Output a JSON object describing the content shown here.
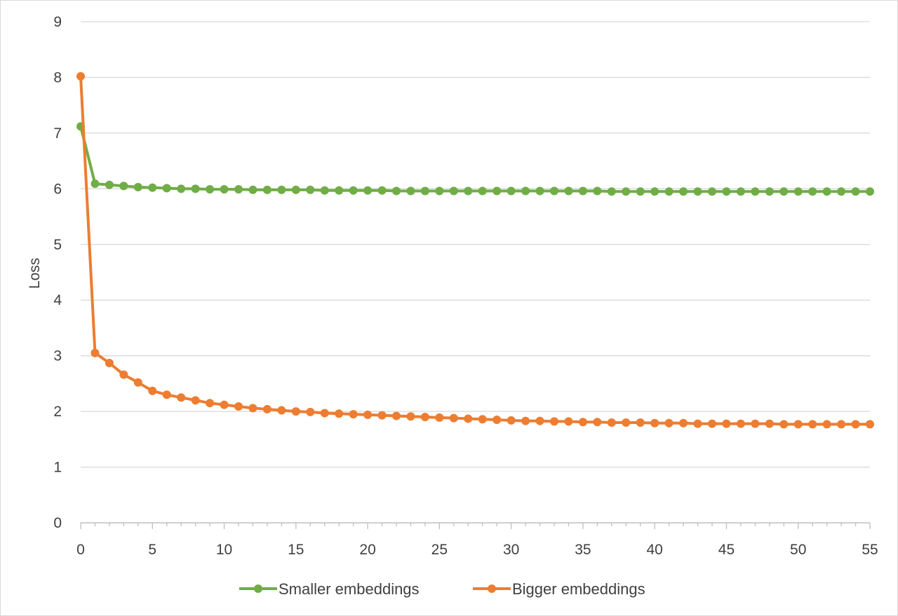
{
  "chart_data": {
    "type": "line",
    "title": "",
    "xlabel": "",
    "ylabel": "Loss",
    "xlim": [
      0,
      55
    ],
    "ylim": [
      0,
      9
    ],
    "xticks": [
      "0",
      "5",
      "10",
      "15",
      "20",
      "25",
      "30",
      "35",
      "40",
      "45",
      "50",
      "55"
    ],
    "yticks": [
      "0",
      "1",
      "2",
      "3",
      "4",
      "5",
      "6",
      "7",
      "8",
      "9"
    ],
    "grid": "horizontal",
    "legend": "bottom-center",
    "x": [
      0,
      1,
      2,
      3,
      4,
      5,
      6,
      7,
      8,
      9,
      10,
      11,
      12,
      13,
      14,
      15,
      16,
      17,
      18,
      19,
      20,
      21,
      22,
      23,
      24,
      25,
      26,
      27,
      28,
      29,
      30,
      31,
      32,
      33,
      34,
      35,
      36,
      37,
      38,
      39,
      40,
      41,
      42,
      43,
      44,
      45,
      46,
      47,
      48,
      49,
      50,
      51,
      52,
      53,
      54,
      55
    ],
    "series": [
      {
        "name": "Smaller embeddings",
        "color": "#70ad47",
        "values": [
          7.12,
          6.09,
          6.07,
          6.05,
          6.03,
          6.02,
          6.01,
          6.0,
          6.0,
          5.99,
          5.99,
          5.99,
          5.98,
          5.98,
          5.98,
          5.98,
          5.98,
          5.97,
          5.97,
          5.97,
          5.97,
          5.97,
          5.96,
          5.96,
          5.96,
          5.96,
          5.96,
          5.96,
          5.96,
          5.96,
          5.96,
          5.96,
          5.96,
          5.96,
          5.96,
          5.96,
          5.96,
          5.95,
          5.95,
          5.95,
          5.95,
          5.95,
          5.95,
          5.95,
          5.95,
          5.95,
          5.95,
          5.95,
          5.95,
          5.95,
          5.95,
          5.95,
          5.95,
          5.95,
          5.95,
          5.95
        ]
      },
      {
        "name": "Bigger embeddings",
        "color": "#ed7d31",
        "values": [
          8.02,
          3.05,
          2.87,
          2.66,
          2.52,
          2.37,
          2.3,
          2.25,
          2.2,
          2.15,
          2.12,
          2.09,
          2.06,
          2.04,
          2.02,
          2.0,
          1.99,
          1.97,
          1.96,
          1.95,
          1.94,
          1.93,
          1.92,
          1.91,
          1.9,
          1.89,
          1.88,
          1.87,
          1.86,
          1.85,
          1.84,
          1.83,
          1.83,
          1.82,
          1.82,
          1.81,
          1.81,
          1.8,
          1.8,
          1.8,
          1.79,
          1.79,
          1.79,
          1.78,
          1.78,
          1.78,
          1.78,
          1.78,
          1.78,
          1.77,
          1.77,
          1.77,
          1.77,
          1.77,
          1.77,
          1.77
        ]
      }
    ]
  }
}
